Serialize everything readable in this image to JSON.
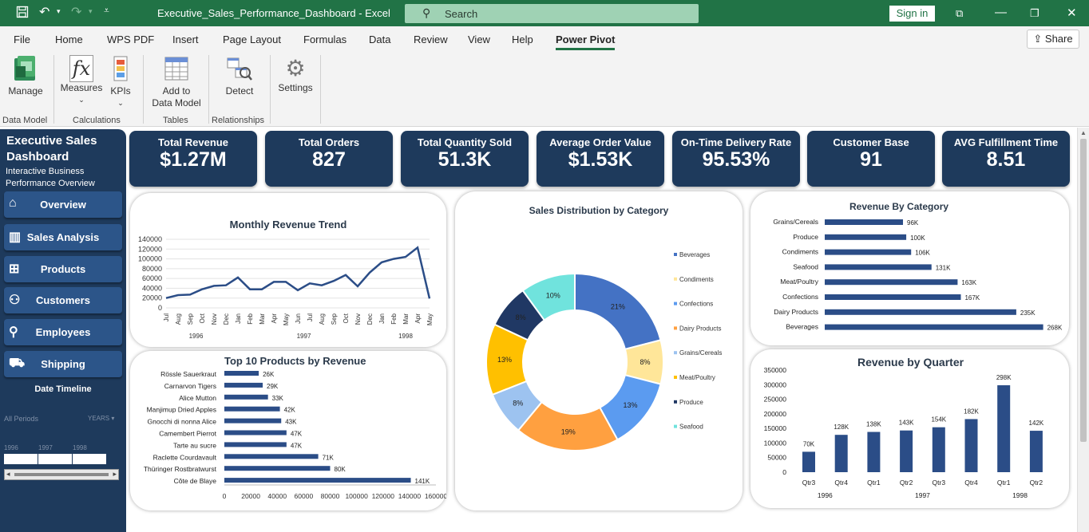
{
  "window": {
    "title": "Executive_Sales_Performance_Dashboard  -  Excel",
    "search_placeholder": "Search",
    "signin": "Sign in"
  },
  "menu": {
    "items": [
      "File",
      "Home",
      "WPS PDF",
      "Insert",
      "Page Layout",
      "Formulas",
      "Data",
      "Review",
      "View",
      "Help",
      "Power Pivot"
    ],
    "active": "Power Pivot",
    "share": "Share"
  },
  "ribbon": {
    "buttons": {
      "manage": "Manage",
      "measures": "Measures",
      "kpis": "KPIs",
      "add1": "Add to",
      "add2": "Data Model",
      "detect": "Detect",
      "settings": "Settings"
    },
    "groups": {
      "data_model": "Data Model",
      "calculations": "Calculations",
      "tables": "Tables",
      "relationships": "Relationships"
    }
  },
  "sidebar": {
    "title_line1": "Executive Sales",
    "title_line2": "Dashboard",
    "subtitle_line1": "Interactive Business",
    "subtitle_line2": "Performance Overview",
    "nav": [
      "Overview",
      "Sales Analysis",
      "Products",
      "Customers",
      "Employees",
      "Shipping"
    ],
    "timeline": {
      "title": "Date Timeline",
      "all_periods": "All Periods",
      "years": "YEARS ▾",
      "year_labels": [
        "1996",
        "1997",
        "1998"
      ]
    }
  },
  "kpis": [
    {
      "label": "Total Revenue",
      "value": "$1.27M"
    },
    {
      "label": "Total Orders",
      "value": "827"
    },
    {
      "label": "Total Quantity Sold",
      "value": "51.3K"
    },
    {
      "label": "Average Order Value",
      "value": "$1.53K"
    },
    {
      "label": "On-Time Delivery Rate",
      "value": "95.53%"
    },
    {
      "label": "Customer Base",
      "value": "91"
    },
    {
      "label": "AVG Fulfillment Time",
      "value": "8.51"
    }
  ],
  "colors": {
    "navy": "#1e3a5c",
    "nav": "#2c5589",
    "bar": "#2b4d87",
    "excel_green": "#217346"
  },
  "chart_data": [
    {
      "type": "line",
      "title": "Monthly Revenue Trend",
      "x": [
        "Jul",
        "Aug",
        "Sep",
        "Oct",
        "Nov",
        "Dec",
        "Jan",
        "Feb",
        "Mar",
        "Apr",
        "May",
        "Jun",
        "Jul",
        "Aug",
        "Sep",
        "Oct",
        "Nov",
        "Dec",
        "Jan",
        "Feb",
        "Mar",
        "Apr",
        "May"
      ],
      "year_groups": [
        {
          "label": "1996",
          "start": 0,
          "end": 5
        },
        {
          "label": "1997",
          "start": 6,
          "end": 17
        },
        {
          "label": "1998",
          "start": 18,
          "end": 22
        }
      ],
      "values": [
        20000,
        26000,
        27000,
        38000,
        45000,
        46000,
        62000,
        38000,
        38000,
        53000,
        53000,
        36000,
        50000,
        46000,
        55000,
        67000,
        44000,
        72000,
        93000,
        100000,
        104000,
        123000,
        19000
      ],
      "ylim": [
        0,
        140000
      ],
      "yticks": [
        "0",
        "20000",
        "40000",
        "60000",
        "80000",
        "100000",
        "120000",
        "140000"
      ]
    },
    {
      "type": "bar",
      "title": "Top 10 Products by Revenue",
      "categories": [
        "Rössle Sauerkraut",
        "Carnarvon Tigers",
        "Alice Mutton",
        "Manjimup Dried Apples",
        "Gnocchi di nonna Alice",
        "Camembert Pierrot",
        "Tarte au sucre",
        "Raclette Courdavault",
        "Thüringer Rostbratwurst",
        "Côte de Blaye"
      ],
      "values": [
        26000,
        29000,
        33000,
        42000,
        43000,
        47000,
        47000,
        71000,
        80000,
        141000
      ],
      "data_labels": [
        "26K",
        "29K",
        "33K",
        "42K",
        "43K",
        "47K",
        "47K",
        "71K",
        "80K",
        "141K"
      ],
      "xlim": [
        0,
        160000
      ],
      "xticks": [
        "0",
        "20000",
        "40000",
        "60000",
        "80000",
        "100000",
        "120000",
        "140000",
        "160000"
      ]
    },
    {
      "type": "pie",
      "title": "Sales Distribution by Category",
      "categories": [
        "Beverages",
        "Condiments",
        "Confections",
        "Dairy Products",
        "Grains/Cereals",
        "Meat/Poultry",
        "Produce",
        "Seafood"
      ],
      "values": [
        21,
        8,
        13,
        19,
        8,
        13,
        8,
        10
      ],
      "data_labels": [
        "21%",
        "8%",
        "13%",
        "19%",
        "8%",
        "13%",
        "8%",
        "10%"
      ],
      "colors": [
        "#4472c4",
        "#ffe699",
        "#5b9bf0",
        "#ffa040",
        "#9dc3f0",
        "#ffc000",
        "#203864",
        "#70e3dd"
      ],
      "legend": "right"
    },
    {
      "type": "bar",
      "title": "Revenue By Category",
      "categories": [
        "Grains/Cereals",
        "Produce",
        "Condiments",
        "Seafood",
        "Meat/Poultry",
        "Confections",
        "Dairy Products",
        "Beverages"
      ],
      "values": [
        96000,
        100000,
        106000,
        131000,
        163000,
        167000,
        235000,
        268000
      ],
      "data_labels": [
        "96K",
        "100K",
        "106K",
        "131K",
        "163K",
        "167K",
        "235K",
        "268K"
      ]
    },
    {
      "type": "bar",
      "title": "Revenue by Quarter",
      "categories": [
        "Qtr3",
        "Qtr4",
        "Qtr1",
        "Qtr2",
        "Qtr3",
        "Qtr4",
        "Qtr1",
        "Qtr2"
      ],
      "year_groups": [
        {
          "label": "1996",
          "start": 0,
          "end": 1
        },
        {
          "label": "1997",
          "start": 2,
          "end": 5
        },
        {
          "label": "1998",
          "start": 6,
          "end": 7
        }
      ],
      "values": [
        70000,
        128000,
        138000,
        143000,
        154000,
        182000,
        298000,
        142000
      ],
      "data_labels": [
        "70K",
        "128K",
        "138K",
        "143K",
        "154K",
        "182K",
        "298K",
        "142K"
      ],
      "ylim": [
        0,
        350000
      ],
      "yticks": [
        "0",
        "50000",
        "100000",
        "150000",
        "200000",
        "250000",
        "300000",
        "350000"
      ]
    }
  ]
}
